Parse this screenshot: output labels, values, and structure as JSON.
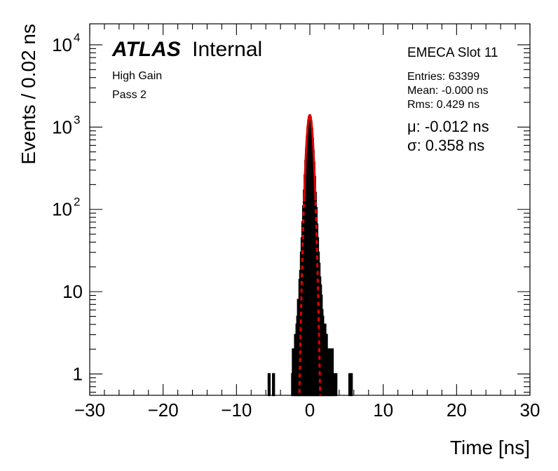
{
  "chart_data": {
    "type": "histogram",
    "xlabel": "Time [ns]",
    "ylabel": "Events / 0.02 ns",
    "xlim": [
      -30,
      30
    ],
    "ylim_log": [
      0.55,
      18000
    ],
    "yscale": "log",
    "xticks": [
      -30,
      -20,
      -10,
      0,
      10,
      20,
      30
    ],
    "xtick_labels": [
      "−30",
      "−20",
      "−10",
      "0",
      "10",
      "20",
      "30"
    ],
    "ytick_labels": [
      {
        "value": 1,
        "base": "1",
        "exp": ""
      },
      {
        "value": 10,
        "base": "10",
        "exp": ""
      },
      {
        "value": 100,
        "base": "10",
        "exp": "2"
      },
      {
        "value": 1000,
        "base": "10",
        "exp": "3"
      },
      {
        "value": 10000,
        "base": "10",
        "exp": "4"
      }
    ],
    "labels": {
      "atlas": "ATLAS",
      "internal": "Internal",
      "gain": "High Gain",
      "pass": "Pass 2",
      "slot": "EMECA Slot 11",
      "entries": "Entries: 63399",
      "mean": "Mean: -0.000 ns",
      "rms": "Rms: 0.429 ns",
      "mu": "μ: -0.012 ns",
      "sigma": "σ: 0.358 ns"
    },
    "fit": {
      "type": "gaussian",
      "mu": -0.012,
      "sigma": 0.358,
      "amplitude": 1400,
      "color": "#e00000"
    },
    "histogram_color": "#000000",
    "histogram": [
      [
        -5.6,
        1
      ],
      [
        -5.5,
        1
      ],
      [
        -5.0,
        1
      ],
      [
        -4.9,
        1
      ],
      [
        -2.4,
        1
      ],
      [
        -2.3,
        2
      ],
      [
        -2.2,
        1
      ],
      [
        -2.1,
        2
      ],
      [
        -2.0,
        3
      ],
      [
        -1.9,
        2
      ],
      [
        -1.8,
        4
      ],
      [
        -1.7,
        5
      ],
      [
        -1.6,
        8
      ],
      [
        -1.5,
        7
      ],
      [
        -1.4,
        14
      ],
      [
        -1.3,
        18
      ],
      [
        -1.2,
        30
      ],
      [
        -1.1,
        45
      ],
      [
        -1.0,
        70
      ],
      [
        -0.9,
        110
      ],
      [
        -0.8,
        170
      ],
      [
        -0.7,
        260
      ],
      [
        -0.6,
        390
      ],
      [
        -0.5,
        540
      ],
      [
        -0.4,
        760
      ],
      [
        -0.3,
        990
      ],
      [
        -0.2,
        1200
      ],
      [
        -0.1,
        1340
      ],
      [
        0.0,
        1400
      ],
      [
        0.1,
        1330
      ],
      [
        0.2,
        1180
      ],
      [
        0.3,
        960
      ],
      [
        0.4,
        730
      ],
      [
        0.5,
        520
      ],
      [
        0.6,
        370
      ],
      [
        0.7,
        250
      ],
      [
        0.8,
        160
      ],
      [
        0.9,
        105
      ],
      [
        1.0,
        66
      ],
      [
        1.1,
        45
      ],
      [
        1.2,
        30
      ],
      [
        1.3,
        22
      ],
      [
        1.4,
        15
      ],
      [
        1.5,
        12
      ],
      [
        1.6,
        9
      ],
      [
        1.7,
        6
      ],
      [
        1.8,
        5
      ],
      [
        1.9,
        4
      ],
      [
        2.0,
        3
      ],
      [
        2.1,
        4
      ],
      [
        2.2,
        2
      ],
      [
        2.3,
        3
      ],
      [
        2.4,
        2
      ],
      [
        2.5,
        1
      ],
      [
        2.6,
        2
      ],
      [
        2.7,
        1
      ],
      [
        2.8,
        2
      ],
      [
        2.9,
        1
      ],
      [
        3.0,
        1
      ],
      [
        3.1,
        2
      ],
      [
        3.3,
        1
      ],
      [
        3.4,
        1
      ],
      [
        3.6,
        1
      ],
      [
        5.4,
        1
      ],
      [
        5.6,
        1
      ],
      [
        5.7,
        1
      ]
    ]
  }
}
